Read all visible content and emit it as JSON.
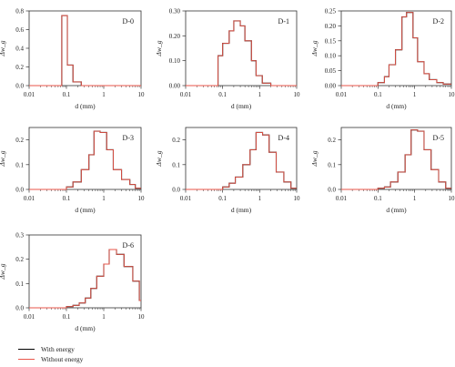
{
  "chart_data": [
    {
      "type": "line",
      "title": "D-0",
      "xlabel": "d (mm)",
      "ylabel": "Δw_g",
      "x_scale": "log",
      "xlim": [
        0.01,
        10
      ],
      "ylim": [
        0,
        0.8
      ],
      "xticks": [
        "0.01",
        "0.1",
        "1",
        "10"
      ],
      "yticks": [
        "0.0",
        "0.2",
        "0.4",
        "0.6",
        "0.8"
      ],
      "x": [
        0.01,
        0.075,
        0.075,
        0.106,
        0.106,
        0.15,
        0.15,
        0.25,
        0.25,
        10
      ],
      "series": [
        {
          "name": "With energy",
          "color": "#000000",
          "values": [
            0,
            0,
            0.75,
            0.75,
            0.22,
            0.22,
            0.04,
            0.04,
            0,
            0
          ]
        },
        {
          "name": "Without energy",
          "color": "#e8564a",
          "values": [
            0,
            0,
            0.75,
            0.75,
            0.22,
            0.22,
            0.04,
            0.04,
            0,
            0
          ]
        }
      ]
    },
    {
      "type": "line",
      "title": "D-1",
      "xlabel": "d (mm)",
      "ylabel": "Δw_g",
      "x_scale": "log",
      "xlim": [
        0.01,
        10
      ],
      "ylim": [
        0,
        0.3
      ],
      "xticks": [
        "0.01",
        "0.1",
        "1",
        "10"
      ],
      "yticks": [
        "0.00",
        "0.10",
        "0.20",
        "0.30"
      ],
      "x": [
        0.01,
        0.075,
        0.075,
        0.1,
        0.1,
        0.15,
        0.15,
        0.2,
        0.2,
        0.3,
        0.3,
        0.4,
        0.4,
        0.6,
        0.6,
        0.8,
        0.8,
        1.18,
        1.18,
        2,
        2,
        10
      ],
      "series": [
        {
          "name": "With energy",
          "color": "#000000",
          "values": [
            0,
            0,
            0.12,
            0.12,
            0.17,
            0.17,
            0.22,
            0.22,
            0.26,
            0.26,
            0.24,
            0.24,
            0.18,
            0.18,
            0.1,
            0.1,
            0.04,
            0.04,
            0.01,
            0.01,
            0,
            0
          ]
        },
        {
          "name": "Without energy",
          "color": "#e8564a",
          "values": [
            0,
            0,
            0.12,
            0.12,
            0.17,
            0.17,
            0.22,
            0.22,
            0.26,
            0.26,
            0.24,
            0.24,
            0.18,
            0.18,
            0.1,
            0.1,
            0.04,
            0.04,
            0.01,
            0.01,
            0,
            0
          ]
        }
      ]
    },
    {
      "type": "line",
      "title": "D-2",
      "xlabel": "d (mm)",
      "ylabel": "Δw_g",
      "x_scale": "log",
      "xlim": [
        0.01,
        10
      ],
      "ylim": [
        0,
        0.25
      ],
      "xticks": [
        "0.01",
        "0.1",
        "1",
        "10"
      ],
      "yticks": [
        "0.00",
        "0.05",
        "0.10",
        "0.15",
        "0.20",
        "0.25"
      ],
      "x": [
        0.01,
        0.1,
        0.1,
        0.15,
        0.15,
        0.2,
        0.2,
        0.3,
        0.3,
        0.45,
        0.45,
        0.6,
        0.6,
        0.9,
        0.9,
        1.2,
        1.2,
        1.8,
        1.8,
        2.5,
        2.5,
        4,
        4,
        6,
        6,
        10
      ],
      "series": [
        {
          "name": "With energy",
          "color": "#000000",
          "values": [
            0,
            0,
            0.01,
            0.01,
            0.03,
            0.03,
            0.07,
            0.07,
            0.12,
            0.12,
            0.23,
            0.23,
            0.245,
            0.245,
            0.16,
            0.16,
            0.08,
            0.08,
            0.04,
            0.04,
            0.02,
            0.02,
            0.01,
            0.01,
            0.005,
            0.005
          ]
        },
        {
          "name": "Without energy",
          "color": "#e8564a",
          "values": [
            0,
            0,
            0.01,
            0.01,
            0.03,
            0.03,
            0.07,
            0.07,
            0.12,
            0.12,
            0.23,
            0.23,
            0.245,
            0.245,
            0.16,
            0.16,
            0.08,
            0.08,
            0.04,
            0.04,
            0.02,
            0.02,
            0.01,
            0.01,
            0.005,
            0.005
          ]
        }
      ]
    },
    {
      "type": "line",
      "title": "D-3",
      "xlabel": "d (mm)",
      "ylabel": "Δw_g",
      "x_scale": "log",
      "xlim": [
        0.01,
        10
      ],
      "ylim": [
        0,
        0.25
      ],
      "xticks": [
        "0.01",
        "0.1",
        "1",
        "10"
      ],
      "yticks": [
        "0.0",
        "0.1",
        "0.2"
      ],
      "x": [
        0.01,
        0.1,
        0.1,
        0.15,
        0.15,
        0.25,
        0.25,
        0.4,
        0.4,
        0.55,
        0.55,
        0.8,
        0.8,
        1.2,
        1.2,
        1.8,
        1.8,
        3,
        3,
        5,
        5,
        7,
        7,
        10
      ],
      "series": [
        {
          "name": "With energy",
          "color": "#000000",
          "values": [
            0,
            0,
            0.01,
            0.01,
            0.03,
            0.03,
            0.08,
            0.08,
            0.14,
            0.14,
            0.235,
            0.235,
            0.23,
            0.23,
            0.16,
            0.16,
            0.08,
            0.08,
            0.04,
            0.04,
            0.02,
            0.02,
            0.005,
            0.005
          ]
        },
        {
          "name": "Without energy",
          "color": "#e8564a",
          "values": [
            0,
            0,
            0.01,
            0.01,
            0.03,
            0.03,
            0.08,
            0.08,
            0.14,
            0.14,
            0.235,
            0.235,
            0.23,
            0.23,
            0.16,
            0.16,
            0.08,
            0.08,
            0.04,
            0.04,
            0.02,
            0.02,
            0.005,
            0.005
          ]
        }
      ]
    },
    {
      "type": "line",
      "title": "D-4",
      "xlabel": "d (mm)",
      "ylabel": "Δw_g",
      "x_scale": "log",
      "xlim": [
        0.01,
        10
      ],
      "ylim": [
        0,
        0.25
      ],
      "xticks": [
        "0.01",
        "0.1",
        "1",
        "10"
      ],
      "yticks": [
        "0.0",
        "0.1",
        "0.2"
      ],
      "x": [
        0.01,
        0.1,
        0.1,
        0.15,
        0.15,
        0.22,
        0.22,
        0.35,
        0.35,
        0.55,
        0.55,
        0.8,
        0.8,
        1.2,
        1.2,
        1.8,
        1.8,
        2.8,
        2.8,
        4.5,
        4.5,
        7,
        7,
        10
      ],
      "series": [
        {
          "name": "With energy",
          "color": "#000000",
          "values": [
            0,
            0,
            0.01,
            0.01,
            0.025,
            0.025,
            0.05,
            0.05,
            0.1,
            0.1,
            0.16,
            0.16,
            0.23,
            0.23,
            0.22,
            0.22,
            0.15,
            0.15,
            0.07,
            0.07,
            0.03,
            0.03,
            0.005,
            0.005
          ]
        },
        {
          "name": "Without energy",
          "color": "#e8564a",
          "values": [
            0,
            0,
            0.01,
            0.01,
            0.025,
            0.025,
            0.05,
            0.05,
            0.1,
            0.1,
            0.16,
            0.16,
            0.23,
            0.23,
            0.22,
            0.22,
            0.15,
            0.15,
            0.07,
            0.07,
            0.03,
            0.03,
            0.005,
            0.005
          ]
        }
      ]
    },
    {
      "type": "line",
      "title": "D-5",
      "xlabel": "d (mm)",
      "ylabel": "Δw_g",
      "x_scale": "log",
      "xlim": [
        0.01,
        10
      ],
      "ylim": [
        0,
        0.25
      ],
      "xticks": [
        "0.01",
        "0.1",
        "1",
        "10"
      ],
      "yticks": [
        "0.0",
        "0.1",
        "0.2"
      ],
      "x": [
        0.01,
        0.1,
        0.1,
        0.15,
        0.15,
        0.22,
        0.22,
        0.35,
        0.35,
        0.55,
        0.55,
        0.8,
        0.8,
        1.2,
        1.2,
        1.8,
        1.8,
        2.8,
        2.8,
        4.5,
        4.5,
        7,
        7,
        10
      ],
      "series": [
        {
          "name": "With energy",
          "color": "#000000",
          "values": [
            0,
            0,
            0.005,
            0.005,
            0.01,
            0.01,
            0.03,
            0.03,
            0.07,
            0.07,
            0.14,
            0.14,
            0.24,
            0.24,
            0.235,
            0.235,
            0.16,
            0.16,
            0.08,
            0.08,
            0.03,
            0.03,
            0.005,
            0.005
          ]
        },
        {
          "name": "Without energy",
          "color": "#e8564a",
          "values": [
            0,
            0,
            0.005,
            0.005,
            0.01,
            0.01,
            0.03,
            0.03,
            0.07,
            0.07,
            0.14,
            0.14,
            0.24,
            0.24,
            0.235,
            0.235,
            0.16,
            0.16,
            0.08,
            0.08,
            0.03,
            0.03,
            0.005,
            0.005
          ]
        }
      ]
    },
    {
      "type": "line",
      "title": "D-6",
      "xlabel": "d (mm)",
      "ylabel": "Δw_g",
      "x_scale": "log",
      "xlim": [
        0.01,
        10
      ],
      "ylim": [
        0,
        0.3
      ],
      "xticks": [
        "0.01",
        "0.1",
        "1",
        "10"
      ],
      "yticks": [
        "0.0",
        "0.1",
        "0.2",
        "0.3"
      ],
      "x": [
        0.01,
        0.1,
        0.1,
        0.15,
        0.15,
        0.22,
        0.22,
        0.32,
        0.32,
        0.45,
        0.45,
        0.65,
        0.65,
        1,
        1,
        1.4,
        1.4,
        2.2,
        2.2,
        3.5,
        3.5,
        6,
        6,
        9,
        9,
        10
      ],
      "series": [
        {
          "name": "With energy",
          "color": "#000000",
          "values": [
            0,
            0,
            0.005,
            0.005,
            0.01,
            0.01,
            0.02,
            0.02,
            0.04,
            0.04,
            0.08,
            0.08,
            0.13,
            0.13,
            0.18,
            0.18,
            0.24,
            0.24,
            0.22,
            0.22,
            0.17,
            0.17,
            0.11,
            0.11,
            0.03,
            0.03
          ]
        },
        {
          "name": "Without energy",
          "color": "#e8564a",
          "values": [
            0,
            0,
            0.005,
            0.005,
            0.01,
            0.01,
            0.02,
            0.02,
            0.04,
            0.04,
            0.08,
            0.08,
            0.13,
            0.13,
            0.18,
            0.18,
            0.24,
            0.24,
            0.22,
            0.22,
            0.17,
            0.17,
            0.11,
            0.11,
            0.03,
            0.03
          ]
        }
      ]
    }
  ],
  "legend": {
    "items": [
      {
        "label": "With energy",
        "color": "#000000"
      },
      {
        "label": "Without energy",
        "color": "#e8564a"
      }
    ]
  }
}
